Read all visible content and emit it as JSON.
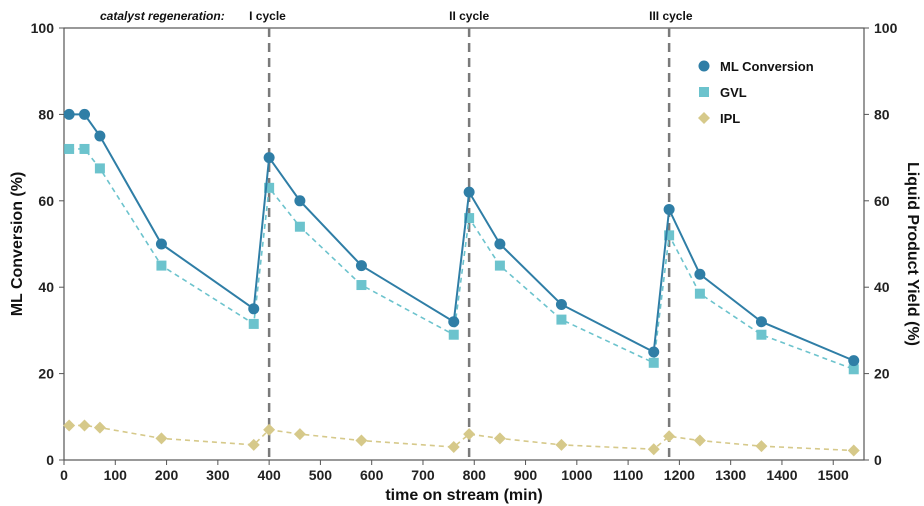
{
  "chart_data": {
    "type": "line",
    "title": "",
    "xlabel": "time on stream (min)",
    "ylabel_left": "ML Conversion (%)",
    "ylabel_right": "Liquid Product Yield (%)",
    "xlim": [
      0,
      1560
    ],
    "ylim": [
      0,
      100
    ],
    "x_ticks": [
      0,
      100,
      200,
      300,
      400,
      500,
      600,
      700,
      800,
      900,
      1000,
      1100,
      1200,
      1300,
      1400,
      1500
    ],
    "y_ticks": [
      0,
      20,
      40,
      60,
      80,
      100
    ],
    "grid": false,
    "legend_position": "top-right",
    "annotation_label": "catalyst regeneration:",
    "cycles": [
      {
        "label": "I cycle",
        "x": 400
      },
      {
        "label": "II cycle",
        "x": 790
      },
      {
        "label": "III cycle",
        "x": 1180
      }
    ],
    "series": [
      {
        "name": "ML Conversion",
        "marker": "circle",
        "line": "solid",
        "color": "#2f7ea6",
        "segments": [
          [
            [
              10,
              80
            ],
            [
              40,
              80
            ],
            [
              70,
              75
            ],
            [
              190,
              50
            ],
            [
              370,
              35
            ]
          ],
          [
            [
              400,
              70
            ],
            [
              460,
              60
            ],
            [
              580,
              45
            ],
            [
              760,
              32
            ]
          ],
          [
            [
              790,
              62
            ],
            [
              850,
              50
            ],
            [
              970,
              36
            ],
            [
              1150,
              25
            ]
          ],
          [
            [
              1180,
              58
            ],
            [
              1240,
              43
            ],
            [
              1360,
              32
            ],
            [
              1540,
              23
            ]
          ]
        ],
        "connect_segments": true
      },
      {
        "name": "GVL",
        "marker": "square",
        "line": "dashed",
        "color": "#6cc3cd",
        "segments": [
          [
            [
              10,
              72
            ],
            [
              40,
              72
            ],
            [
              70,
              67.5
            ],
            [
              190,
              45
            ],
            [
              370,
              31.5
            ]
          ],
          [
            [
              400,
              63
            ],
            [
              460,
              54
            ],
            [
              580,
              40.5
            ],
            [
              760,
              29
            ]
          ],
          [
            [
              790,
              56
            ],
            [
              850,
              45
            ],
            [
              970,
              32.5
            ],
            [
              1150,
              22.5
            ]
          ],
          [
            [
              1180,
              52
            ],
            [
              1240,
              38.5
            ],
            [
              1360,
              29
            ],
            [
              1540,
              21
            ]
          ]
        ],
        "connect_segments": true
      },
      {
        "name": "IPL",
        "marker": "diamond",
        "line": "dashed",
        "color": "#d6c98a",
        "segments": [
          [
            [
              10,
              8
            ],
            [
              40,
              8
            ],
            [
              70,
              7.5
            ],
            [
              190,
              5
            ],
            [
              370,
              3.5
            ]
          ],
          [
            [
              400,
              7
            ],
            [
              460,
              6
            ],
            [
              580,
              4.5
            ],
            [
              760,
              3
            ]
          ],
          [
            [
              790,
              6
            ],
            [
              850,
              5
            ],
            [
              970,
              3.5
            ],
            [
              1150,
              2.5
            ]
          ],
          [
            [
              1180,
              5.5
            ],
            [
              1240,
              4.5
            ],
            [
              1360,
              3.2
            ],
            [
              1540,
              2.2
            ]
          ]
        ],
        "connect_segments": true
      }
    ]
  }
}
